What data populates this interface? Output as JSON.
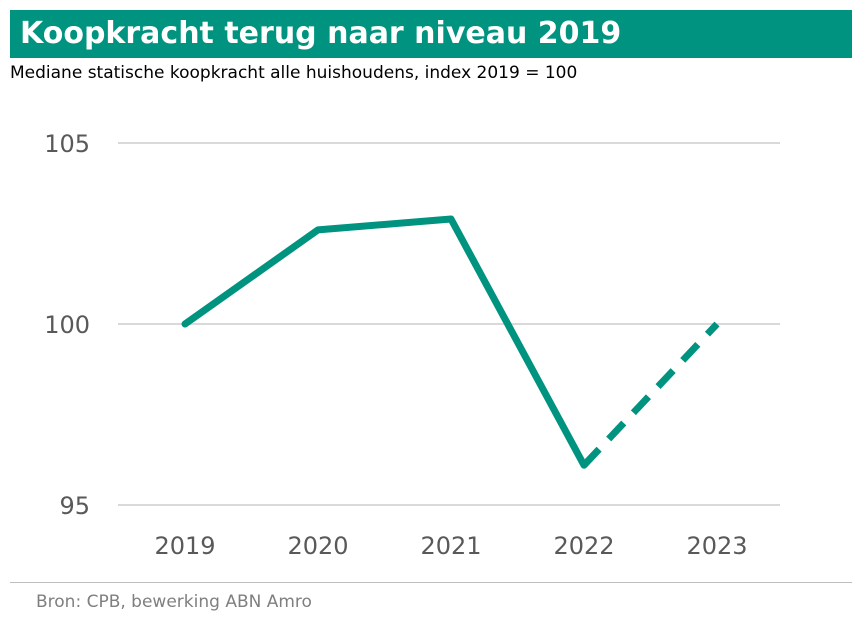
{
  "title": "Koopkracht terug naar niveau 2019",
  "subtitle": "Mediane statische koopkracht alle huishoudens, index 2019 = 100",
  "source": "Bron: CPB, bewerking ABN Amro",
  "colors": {
    "title_bar": "#00937F",
    "line": "#00937F",
    "grid": "#d9d9d9",
    "tick_text": "#595959"
  },
  "chart_data": {
    "type": "line",
    "categories": [
      "2019",
      "2020",
      "2021",
      "2022",
      "2023"
    ],
    "series": [
      {
        "values": [
          100,
          102.6,
          102.9,
          96.1,
          100
        ],
        "style": "solid-until-2022-dashed-after"
      }
    ],
    "yticks": [
      "105",
      "100",
      "95"
    ],
    "ylim": [
      95,
      105
    ],
    "grid": true,
    "legend": "none"
  }
}
